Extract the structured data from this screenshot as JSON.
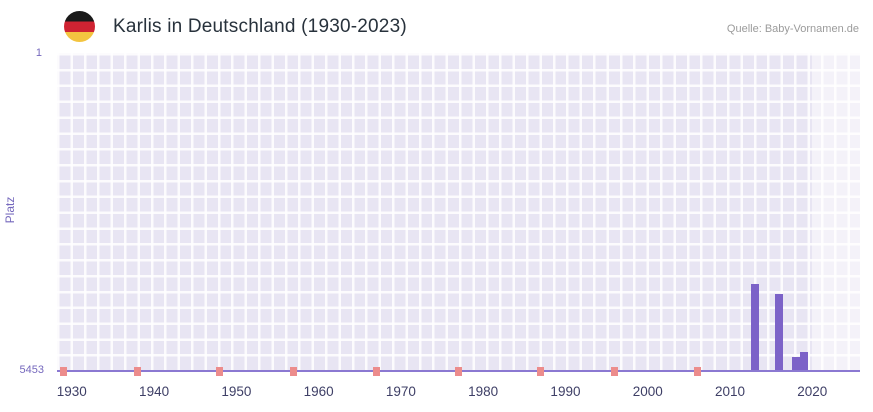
{
  "header": {
    "title": "Karlis in Deutschland (1930-2023)",
    "source": "Quelle: Baby-Vornamen.de",
    "flag_icon": "german-flag-circle",
    "flag_colors": [
      "#1a1a1a",
      "#cf2332",
      "#f3c440"
    ]
  },
  "chart_data": {
    "type": "bar",
    "title": "Karlis in Deutschland (1930-2023)",
    "xlabel": "",
    "ylabel": "Platz",
    "x_ticks": [
      1930,
      1940,
      1950,
      1960,
      1970,
      1980,
      1990,
      2000,
      2010,
      2020
    ],
    "y_ticks": [
      1,
      5453
    ],
    "y_axis_inverted": true,
    "ylim": [
      1,
      5453
    ],
    "xlim": [
      1928.2,
      2025.8
    ],
    "grid": true,
    "legend": false,
    "series": [
      {
        "name": "Platz",
        "color": "#7c62c8",
        "points": [
          {
            "year": 2013,
            "rank": 3980
          },
          {
            "year": 2016,
            "rank": 4150
          },
          {
            "year": 2018,
            "rank": 5230
          },
          {
            "year": 2019,
            "rank": 5140
          }
        ]
      }
    ],
    "no_rank_marker_years": [
      1929,
      1938,
      1948,
      1957,
      1967,
      1977,
      1987,
      1996,
      2006
    ],
    "no_rank_marker_color": "#ec8c8c",
    "plot_band": {
      "from": 2020,
      "to": 2025.8,
      "color": "rgba(255,255,255,0.5)"
    },
    "plot_bg": "#e8e5f3",
    "grid_color": "rgba(255,255,255,0.85)",
    "axis_line_color": "#8b79d2"
  }
}
